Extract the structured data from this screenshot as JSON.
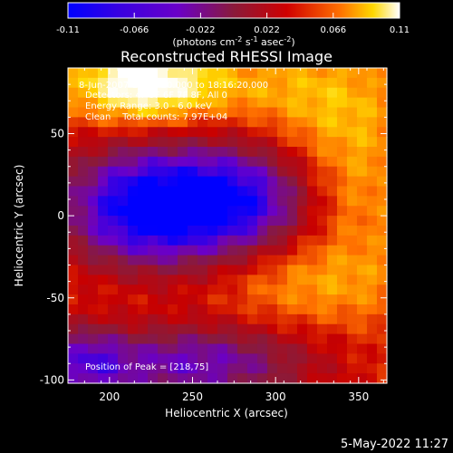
{
  "colorbar": {
    "ticks": [
      "-0.11",
      "-0.066",
      "-0.022",
      "0.022",
      "0.066",
      "0.11"
    ],
    "units_text": "(photons cm",
    "units_sup1": "-2",
    "units_mid": " s",
    "units_sup2": "-1",
    "units_mid2": " asec",
    "units_sup3": "-2",
    "units_end": ")"
  },
  "image_info": {
    "title": "Reconstructed RHESSI Image",
    "time_range": "8-Jun-2007 18:10:20.000 to 18:16:20.000",
    "detectors": "Detectors: 4F 5F 6F 7F 8F, All 0",
    "energy": "Energy Range: 3.0 - 6.0 keV",
    "clean_line": "Clean    Total counts: 7.97E+04",
    "peak_label": "Position of Peak = [218,75]"
  },
  "footer": {
    "date": "5-May-2022 11:27"
  },
  "chart_data": {
    "type": "heatmap",
    "title": "Reconstructed RHESSI Image",
    "xlabel": "Heliocentric X (arcsec)",
    "ylabel": "Heliocentric Y (arcsec)",
    "xlim": [
      175,
      367
    ],
    "ylim": [
      -102,
      90
    ],
    "x_ticks": [
      200,
      250,
      300,
      350
    ],
    "y_ticks": [
      -100,
      -50,
      0,
      50
    ],
    "value_range": [
      -0.11,
      0.11
    ],
    "colormap": [
      "#0000ff",
      "#6a00c8",
      "#8a1a3a",
      "#c80000",
      "#ff7000",
      "#ffd800",
      "#ffffff"
    ],
    "peak_position": [
      218,
      75
    ]
  }
}
